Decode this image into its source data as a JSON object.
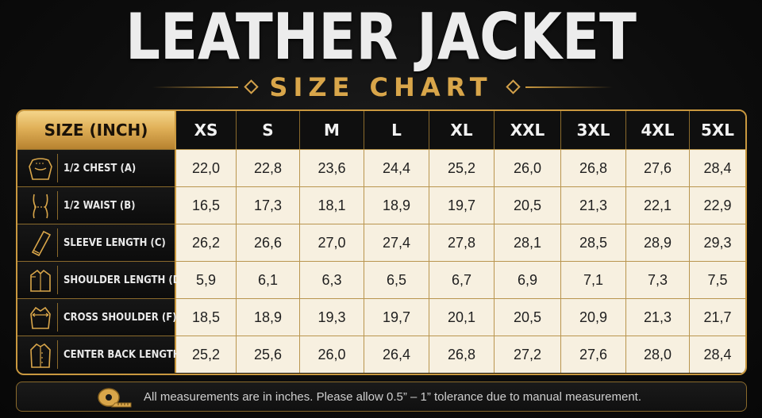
{
  "title": "LEATHER JACKET",
  "subtitle": "SIZE CHART",
  "table": {
    "size_header": "SIZE (INCH)",
    "sizes": [
      "XS",
      "S",
      "M",
      "L",
      "XL",
      "XXL",
      "3XL",
      "4XL",
      "5XL"
    ],
    "rows": [
      {
        "label": "1/2 CHEST (A)",
        "icon": "chest-icon",
        "values": [
          "22,0",
          "22,8",
          "23,6",
          "24,4",
          "25,2",
          "26,0",
          "26,8",
          "27,6",
          "28,4"
        ]
      },
      {
        "label": "1/2 WAIST (B)",
        "icon": "waist-icon",
        "values": [
          "16,5",
          "17,3",
          "18,1",
          "18,9",
          "19,7",
          "20,5",
          "21,3",
          "22,1",
          "22,9"
        ]
      },
      {
        "label": "SLEEVE LENGTH (C)",
        "icon": "sleeve-icon",
        "values": [
          "26,2",
          "26,6",
          "27,0",
          "27,4",
          "27,8",
          "28,1",
          "28,5",
          "28,9",
          "29,3"
        ]
      },
      {
        "label": "SHOULDER LENGTH (D)",
        "icon": "shoulder-icon",
        "values": [
          "5,9",
          "6,1",
          "6,3",
          "6,5",
          "6,7",
          "6,9",
          "7,1",
          "7,3",
          "7,5"
        ]
      },
      {
        "label": "CROSS SHOULDER (F)",
        "icon": "cross-shoulder-icon",
        "values": [
          "18,5",
          "18,9",
          "19,3",
          "19,7",
          "20,1",
          "20,5",
          "20,9",
          "21,3",
          "21,7"
        ]
      },
      {
        "label": "CENTER BACK LENGTH (F)",
        "icon": "jacket-back-icon",
        "values": [
          "25,2",
          "25,6",
          "26,0",
          "26,4",
          "26,8",
          "27,2",
          "27,6",
          "28,0",
          "28,4"
        ]
      }
    ]
  },
  "footer": {
    "icon": "measuring-tape-icon",
    "note": "All measurements are in inches. Please allow 0.5” – 1” tolerance due to manual measurement."
  },
  "colors": {
    "accent_gold": "#c9983f",
    "header_gold": "#e0b058",
    "cell_cream": "#f7f0e0",
    "background": "#0d0d0d"
  }
}
